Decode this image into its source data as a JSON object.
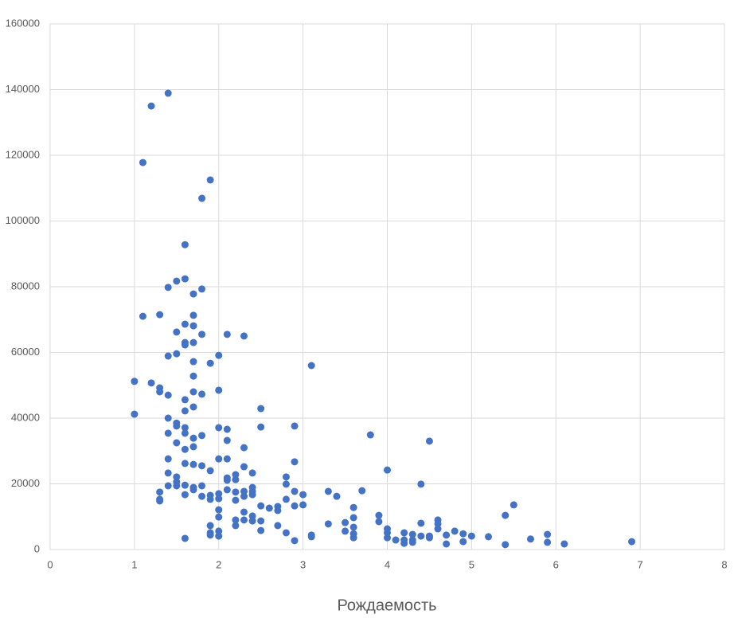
{
  "chart_data": {
    "type": "scatter",
    "x_label": "Рождаемость",
    "color": "#4472c4",
    "grid": true,
    "xlim": [
      0,
      8
    ],
    "xticks": [
      0,
      1,
      2,
      3,
      4,
      5,
      6,
      7,
      8
    ],
    "ylim": [
      0,
      160000
    ],
    "yticks": [
      0,
      20000,
      40000,
      60000,
      80000,
      100000,
      120000,
      140000,
      160000
    ],
    "x": [
      1.4,
      1.2,
      1.1,
      1.9,
      1.8,
      1.6,
      1.6,
      1.5,
      1.4,
      1.8,
      1.7,
      1.1,
      1.3,
      1.7,
      1.6,
      1.7,
      1.5,
      1.8,
      2.1,
      2.3,
      1.6,
      1.6,
      1.7,
      1.4,
      1.5,
      2.0,
      3.1,
      1.9,
      1.7,
      1.7,
      1.0,
      1.2,
      1.3,
      1.3,
      1.4,
      1.7,
      1.8,
      2.0,
      1.6,
      1.7,
      2.5,
      1.6,
      1.0,
      1.4,
      1.5,
      1.5,
      2.0,
      2.1,
      2.5,
      2.9,
      1.6,
      1.6,
      1.4,
      1.8,
      1.7,
      3.8,
      4.5,
      1.5,
      2.1,
      2.3,
      1.6,
      1.7,
      1.4,
      2.0,
      2.1,
      2.9,
      1.6,
      1.7,
      1.8,
      2.3,
      4.0,
      1.9,
      1.4,
      2.4,
      2.2,
      1.5,
      2.8,
      2.1,
      2.2,
      2.1,
      1.5,
      1.4,
      1.6,
      1.5,
      1.7,
      1.8,
      1.7,
      2.8,
      4.4,
      2.4,
      2.1,
      2.4,
      2.9,
      3.3,
      3.7,
      1.3,
      2.2,
      2.3,
      2.0,
      1.6,
      3.0,
      3.4,
      1.8,
      1.9,
      2.3,
      2.4,
      1.3,
      1.3,
      1.9,
      2.0,
      2.2,
      2.8,
      5.5,
      2.5,
      3.0,
      2.9,
      2.6,
      2.7,
      3.6,
      2.7,
      2.0,
      2.3,
      5.4,
      3.9,
      2.4,
      2.0,
      3.6,
      2.2,
      2.3,
      2.4,
      2.5,
      4.6,
      3.9,
      3.5,
      4.4,
      3.3,
      4.6,
      1.9,
      2.2,
      2.7,
      3.6,
      4.0,
      4.6,
      2.5,
      2.0,
      3.5,
      4.8,
      1.9,
      2.8,
      4.0,
      4.2,
      4.9,
      3.6,
      5.9,
      1.9,
      2.0,
      3.1,
      4.3,
      4.4,
      4.5,
      4.7,
      5.0,
      5.2,
      3.1,
      3.6,
      4.0,
      4.5,
      1.6,
      4.1,
      4.3,
      4.2,
      5.7,
      2.9,
      4.9,
      6.9,
      5.9,
      4.3,
      4.2,
      4.7,
      6.1,
      5.4
    ],
    "values": [
      138900,
      135000,
      117800,
      112500,
      106900,
      92800,
      82400,
      81700,
      79800,
      79300,
      77800,
      71000,
      71500,
      71300,
      68600,
      68100,
      66200,
      65500,
      65500,
      65000,
      63000,
      62300,
      63000,
      58900,
      59600,
      59100,
      56000,
      56700,
      57200,
      52800,
      51200,
      50700,
      49200,
      48000,
      47000,
      48000,
      47300,
      48500,
      45600,
      43400,
      42900,
      42200,
      41200,
      40000,
      38500,
      37600,
      37100,
      36600,
      37300,
      37600,
      37100,
      35400,
      35400,
      34700,
      33900,
      34900,
      33000,
      32500,
      33200,
      31000,
      30500,
      31300,
      27600,
      27600,
      27600,
      26700,
      26200,
      25900,
      25500,
      25200,
      24200,
      24000,
      23300,
      23300,
      22800,
      22100,
      22100,
      21800,
      21300,
      21100,
      20600,
      19400,
      19600,
      19400,
      18900,
      19400,
      18200,
      19900,
      19900,
      18900,
      18200,
      17700,
      17700,
      17700,
      17900,
      17500,
      17500,
      17700,
      17000,
      16700,
      16700,
      16200,
      16200,
      16500,
      16200,
      16700,
      15300,
      14800,
      15300,
      15500,
      15000,
      15300,
      13600,
      13300,
      13600,
      13300,
      12600,
      13100,
      12800,
      11900,
      12100,
      11400,
      10400,
      10400,
      10200,
      9900,
      9700,
      9000,
      9000,
      8700,
      8700,
      9000,
      8500,
      8200,
      8000,
      7800,
      7800,
      7300,
      7300,
      7300,
      6800,
      6300,
      6300,
      5800,
      5600,
      5600,
      5600,
      5100,
      5100,
      5100,
      5100,
      4800,
      4800,
      4600,
      4400,
      4100,
      4400,
      4600,
      4100,
      4100,
      4400,
      4100,
      3900,
      3900,
      3600,
      3600,
      3600,
      3400,
      2900,
      2900,
      2900,
      3200,
      2700,
      2400,
      2400,
      2200,
      2200,
      1900,
      1700,
      1700,
      1500
    ]
  }
}
